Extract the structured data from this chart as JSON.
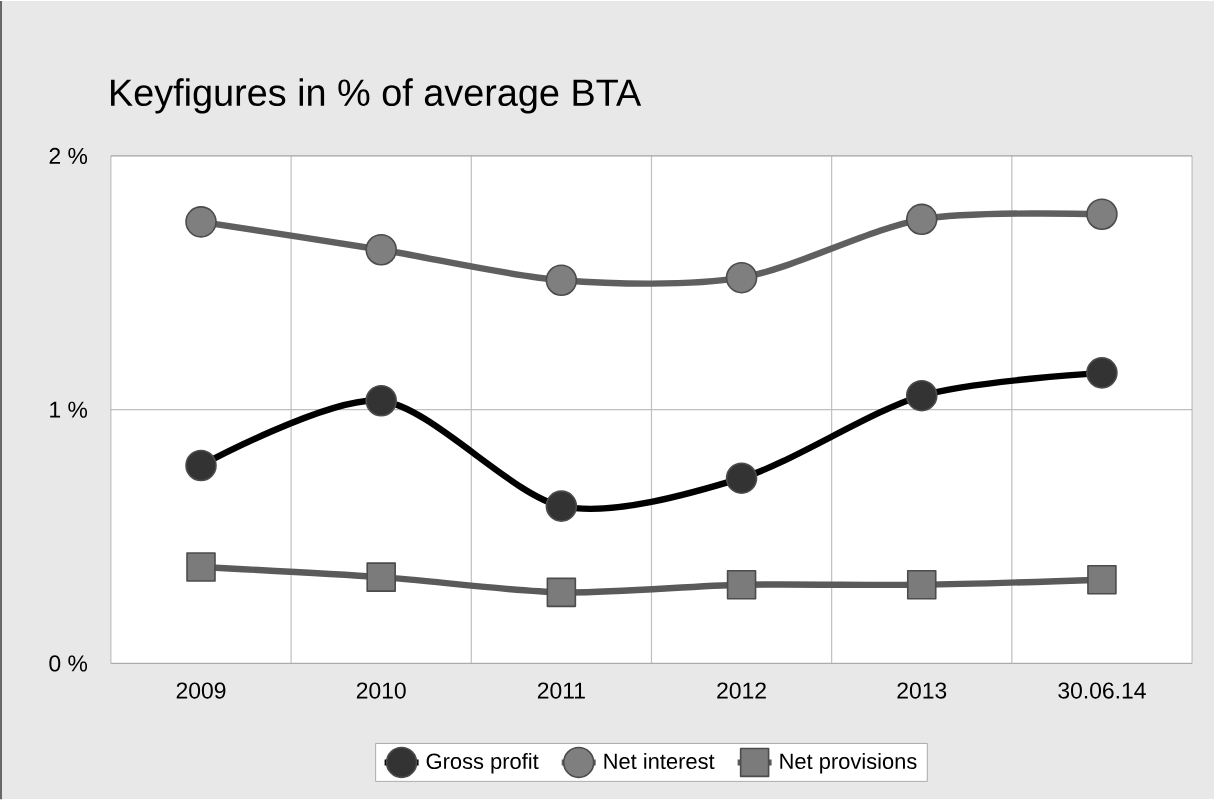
{
  "chart_data": {
    "type": "line",
    "title": "Keyfigures in % of average BTA",
    "categories": [
      "2009",
      "2010",
      "2011",
      "2012",
      "2013",
      "30.06.14"
    ],
    "series": [
      {
        "name": "Gross profit",
        "color": "#000000",
        "marker": "circle",
        "values": [
          0.78,
          1.035,
          0.62,
          0.73,
          1.055,
          1.145
        ]
      },
      {
        "name": "Net interest",
        "color": "#5f5f5f",
        "marker": "circle",
        "values": [
          1.74,
          1.63,
          1.51,
          1.52,
          1.75,
          1.77
        ]
      },
      {
        "name": "Net provisions",
        "color": "#5a5a5a",
        "marker": "square",
        "values": [
          0.38,
          0.34,
          0.28,
          0.31,
          0.31,
          0.33
        ]
      }
    ],
    "ylim": [
      0,
      2
    ],
    "yticks": [
      {
        "value": 0,
        "label": "0 %"
      },
      {
        "value": 1,
        "label": "1 %"
      },
      {
        "value": 2,
        "label": "2 %"
      }
    ],
    "grid": true,
    "legend": "bottom",
    "line_style": "solid"
  }
}
